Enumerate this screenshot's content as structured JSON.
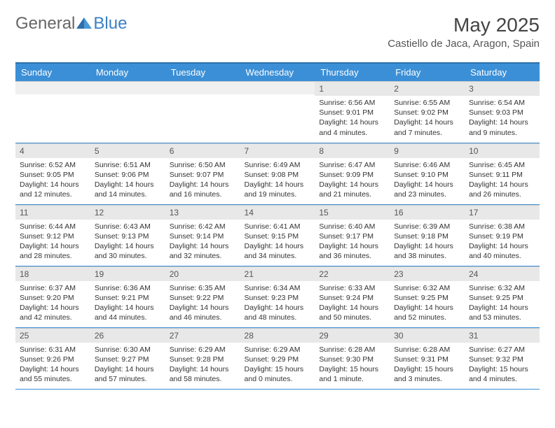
{
  "logo": {
    "general": "General",
    "blue": "Blue"
  },
  "title": "May 2025",
  "location": "Castiello de Jaca, Aragon, Spain",
  "colors": {
    "header_bg": "#3b8fd6",
    "header_border": "#2c6fa8",
    "daynum_bg": "#e8e8e8",
    "cell_border": "#3b8fd6",
    "logo_blue": "#3b7fc4",
    "logo_grey": "#666666",
    "text": "#333333",
    "background": "#ffffff"
  },
  "weekdays": [
    "Sunday",
    "Monday",
    "Tuesday",
    "Wednesday",
    "Thursday",
    "Friday",
    "Saturday"
  ],
  "weeks": [
    [
      null,
      null,
      null,
      null,
      {
        "n": "1",
        "sr": "6:56 AM",
        "ss": "9:01 PM",
        "d": "14 hours and 4 minutes."
      },
      {
        "n": "2",
        "sr": "6:55 AM",
        "ss": "9:02 PM",
        "d": "14 hours and 7 minutes."
      },
      {
        "n": "3",
        "sr": "6:54 AM",
        "ss": "9:03 PM",
        "d": "14 hours and 9 minutes."
      }
    ],
    [
      {
        "n": "4",
        "sr": "6:52 AM",
        "ss": "9:05 PM",
        "d": "14 hours and 12 minutes."
      },
      {
        "n": "5",
        "sr": "6:51 AM",
        "ss": "9:06 PM",
        "d": "14 hours and 14 minutes."
      },
      {
        "n": "6",
        "sr": "6:50 AM",
        "ss": "9:07 PM",
        "d": "14 hours and 16 minutes."
      },
      {
        "n": "7",
        "sr": "6:49 AM",
        "ss": "9:08 PM",
        "d": "14 hours and 19 minutes."
      },
      {
        "n": "8",
        "sr": "6:47 AM",
        "ss": "9:09 PM",
        "d": "14 hours and 21 minutes."
      },
      {
        "n": "9",
        "sr": "6:46 AM",
        "ss": "9:10 PM",
        "d": "14 hours and 23 minutes."
      },
      {
        "n": "10",
        "sr": "6:45 AM",
        "ss": "9:11 PM",
        "d": "14 hours and 26 minutes."
      }
    ],
    [
      {
        "n": "11",
        "sr": "6:44 AM",
        "ss": "9:12 PM",
        "d": "14 hours and 28 minutes."
      },
      {
        "n": "12",
        "sr": "6:43 AM",
        "ss": "9:13 PM",
        "d": "14 hours and 30 minutes."
      },
      {
        "n": "13",
        "sr": "6:42 AM",
        "ss": "9:14 PM",
        "d": "14 hours and 32 minutes."
      },
      {
        "n": "14",
        "sr": "6:41 AM",
        "ss": "9:15 PM",
        "d": "14 hours and 34 minutes."
      },
      {
        "n": "15",
        "sr": "6:40 AM",
        "ss": "9:17 PM",
        "d": "14 hours and 36 minutes."
      },
      {
        "n": "16",
        "sr": "6:39 AM",
        "ss": "9:18 PM",
        "d": "14 hours and 38 minutes."
      },
      {
        "n": "17",
        "sr": "6:38 AM",
        "ss": "9:19 PM",
        "d": "14 hours and 40 minutes."
      }
    ],
    [
      {
        "n": "18",
        "sr": "6:37 AM",
        "ss": "9:20 PM",
        "d": "14 hours and 42 minutes."
      },
      {
        "n": "19",
        "sr": "6:36 AM",
        "ss": "9:21 PM",
        "d": "14 hours and 44 minutes."
      },
      {
        "n": "20",
        "sr": "6:35 AM",
        "ss": "9:22 PM",
        "d": "14 hours and 46 minutes."
      },
      {
        "n": "21",
        "sr": "6:34 AM",
        "ss": "9:23 PM",
        "d": "14 hours and 48 minutes."
      },
      {
        "n": "22",
        "sr": "6:33 AM",
        "ss": "9:24 PM",
        "d": "14 hours and 50 minutes."
      },
      {
        "n": "23",
        "sr": "6:32 AM",
        "ss": "9:25 PM",
        "d": "14 hours and 52 minutes."
      },
      {
        "n": "24",
        "sr": "6:32 AM",
        "ss": "9:25 PM",
        "d": "14 hours and 53 minutes."
      }
    ],
    [
      {
        "n": "25",
        "sr": "6:31 AM",
        "ss": "9:26 PM",
        "d": "14 hours and 55 minutes."
      },
      {
        "n": "26",
        "sr": "6:30 AM",
        "ss": "9:27 PM",
        "d": "14 hours and 57 minutes."
      },
      {
        "n": "27",
        "sr": "6:29 AM",
        "ss": "9:28 PM",
        "d": "14 hours and 58 minutes."
      },
      {
        "n": "28",
        "sr": "6:29 AM",
        "ss": "9:29 PM",
        "d": "15 hours and 0 minutes."
      },
      {
        "n": "29",
        "sr": "6:28 AM",
        "ss": "9:30 PM",
        "d": "15 hours and 1 minute."
      },
      {
        "n": "30",
        "sr": "6:28 AM",
        "ss": "9:31 PM",
        "d": "15 hours and 3 minutes."
      },
      {
        "n": "31",
        "sr": "6:27 AM",
        "ss": "9:32 PM",
        "d": "15 hours and 4 minutes."
      }
    ]
  ],
  "labels": {
    "sunrise": "Sunrise:",
    "sunset": "Sunset:",
    "daylight": "Daylight:"
  }
}
